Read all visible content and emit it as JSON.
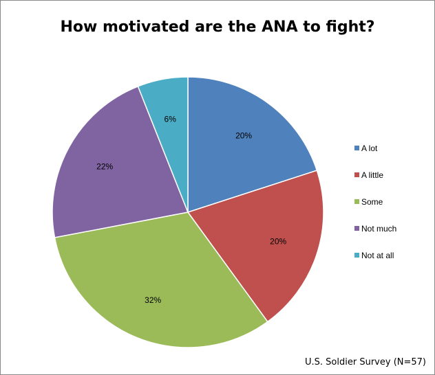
{
  "chart_data": {
    "type": "pie",
    "title": "How motivated are the ANA to fight?",
    "categories": [
      "A lot",
      "A little",
      "Some",
      "Not much",
      "Not at all"
    ],
    "values": [
      20,
      20,
      32,
      22,
      6
    ],
    "labels": [
      "20%",
      "20%",
      "32%",
      "22%",
      "6%"
    ],
    "colors": [
      "#4F81BD",
      "#C0504D",
      "#9BBB59",
      "#8064A2",
      "#4BACC6"
    ],
    "legend_position": "right"
  },
  "footer": "U.S. Soldier Survey (N=57)"
}
